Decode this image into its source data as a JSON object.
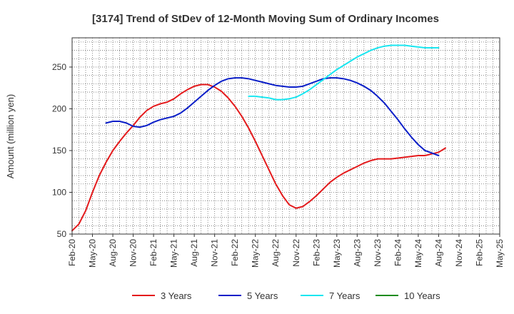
{
  "chart_data": {
    "type": "line",
    "title": "[3174]  Trend of StDev of 12-Month Moving Sum of Ordinary Incomes",
    "xlabel": "",
    "ylabel": "Amount (million yen)",
    "ylim": [
      50,
      285
    ],
    "yticks": [
      50,
      100,
      150,
      200,
      250
    ],
    "x_tick_labels": [
      "Feb-20",
      "May-20",
      "Aug-20",
      "Nov-20",
      "Feb-21",
      "May-21",
      "Aug-21",
      "Nov-21",
      "Feb-22",
      "May-22",
      "Aug-22",
      "Nov-22",
      "Feb-23",
      "May-23",
      "Aug-23",
      "Nov-23",
      "Feb-24",
      "May-24",
      "Aug-24",
      "Nov-24",
      "Feb-25",
      "May-25"
    ],
    "x_range_months": [
      0,
      63
    ],
    "grid": true,
    "legend_position": "bottom",
    "series": [
      {
        "name": "3 Years",
        "color": "#e41a1c",
        "points": [
          [
            0,
            54
          ],
          [
            1,
            62
          ],
          [
            2,
            78
          ],
          [
            3,
            100
          ],
          [
            4,
            120
          ],
          [
            5,
            136
          ],
          [
            6,
            150
          ],
          [
            7,
            161
          ],
          [
            8,
            171
          ],
          [
            9,
            180
          ],
          [
            10,
            190
          ],
          [
            11,
            198
          ],
          [
            12,
            203
          ],
          [
            13,
            206
          ],
          [
            14,
            208
          ],
          [
            15,
            212
          ],
          [
            16,
            218
          ],
          [
            17,
            223
          ],
          [
            18,
            227
          ],
          [
            19,
            229
          ],
          [
            20,
            229
          ],
          [
            21,
            226
          ],
          [
            22,
            221
          ],
          [
            23,
            213
          ],
          [
            24,
            203
          ],
          [
            25,
            191
          ],
          [
            26,
            177
          ],
          [
            27,
            161
          ],
          [
            28,
            144
          ],
          [
            29,
            127
          ],
          [
            30,
            110
          ],
          [
            31,
            96
          ],
          [
            32,
            85
          ],
          [
            33,
            81
          ],
          [
            34,
            83
          ],
          [
            35,
            89
          ],
          [
            36,
            96
          ],
          [
            37,
            104
          ],
          [
            38,
            112
          ],
          [
            39,
            118
          ],
          [
            40,
            123
          ],
          [
            41,
            127
          ],
          [
            42,
            131
          ],
          [
            43,
            135
          ],
          [
            44,
            138
          ],
          [
            45,
            140
          ],
          [
            46,
            140
          ],
          [
            47,
            140
          ],
          [
            48,
            141
          ],
          [
            49,
            142
          ],
          [
            50,
            143
          ],
          [
            51,
            144
          ],
          [
            52,
            144
          ],
          [
            53,
            146
          ],
          [
            54,
            148
          ],
          [
            55,
            153
          ]
        ]
      },
      {
        "name": "5 Years",
        "color": "#0a1ec8",
        "points": [
          [
            5,
            183
          ],
          [
            6,
            185
          ],
          [
            7,
            185
          ],
          [
            8,
            183
          ],
          [
            9,
            179
          ],
          [
            10,
            178
          ],
          [
            11,
            180
          ],
          [
            12,
            184
          ],
          [
            13,
            187
          ],
          [
            14,
            189
          ],
          [
            15,
            191
          ],
          [
            16,
            195
          ],
          [
            17,
            201
          ],
          [
            18,
            208
          ],
          [
            19,
            215
          ],
          [
            20,
            222
          ],
          [
            21,
            228
          ],
          [
            22,
            233
          ],
          [
            23,
            236
          ],
          [
            24,
            237
          ],
          [
            25,
            237
          ],
          [
            26,
            236
          ],
          [
            27,
            234
          ],
          [
            28,
            232
          ],
          [
            29,
            230
          ],
          [
            30,
            228
          ],
          [
            31,
            227
          ],
          [
            32,
            226
          ],
          [
            33,
            226
          ],
          [
            34,
            227
          ],
          [
            35,
            230
          ],
          [
            36,
            233
          ],
          [
            37,
            236
          ],
          [
            38,
            237
          ],
          [
            39,
            237
          ],
          [
            40,
            236
          ],
          [
            41,
            234
          ],
          [
            42,
            231
          ],
          [
            43,
            227
          ],
          [
            44,
            222
          ],
          [
            45,
            215
          ],
          [
            46,
            207
          ],
          [
            47,
            197
          ],
          [
            48,
            187
          ],
          [
            49,
            176
          ],
          [
            50,
            166
          ],
          [
            51,
            157
          ],
          [
            52,
            150
          ],
          [
            53,
            147
          ],
          [
            54,
            144
          ]
        ]
      },
      {
        "name": "7 Years",
        "color": "#19e6f0",
        "points": [
          [
            26,
            215
          ],
          [
            27,
            215
          ],
          [
            28,
            214
          ],
          [
            29,
            213
          ],
          [
            30,
            211
          ],
          [
            31,
            211
          ],
          [
            32,
            212
          ],
          [
            33,
            214
          ],
          [
            34,
            218
          ],
          [
            35,
            223
          ],
          [
            36,
            229
          ],
          [
            37,
            235
          ],
          [
            38,
            241
          ],
          [
            39,
            247
          ],
          [
            40,
            252
          ],
          [
            41,
            257
          ],
          [
            42,
            262
          ],
          [
            43,
            266
          ],
          [
            44,
            270
          ],
          [
            45,
            273
          ],
          [
            46,
            275
          ],
          [
            47,
            276
          ],
          [
            48,
            276
          ],
          [
            49,
            276
          ],
          [
            50,
            275
          ],
          [
            51,
            274
          ],
          [
            52,
            273
          ],
          [
            53,
            273
          ],
          [
            54,
            273
          ]
        ]
      },
      {
        "name": "10 Years",
        "color": "#1e8c1e",
        "points": []
      }
    ]
  }
}
